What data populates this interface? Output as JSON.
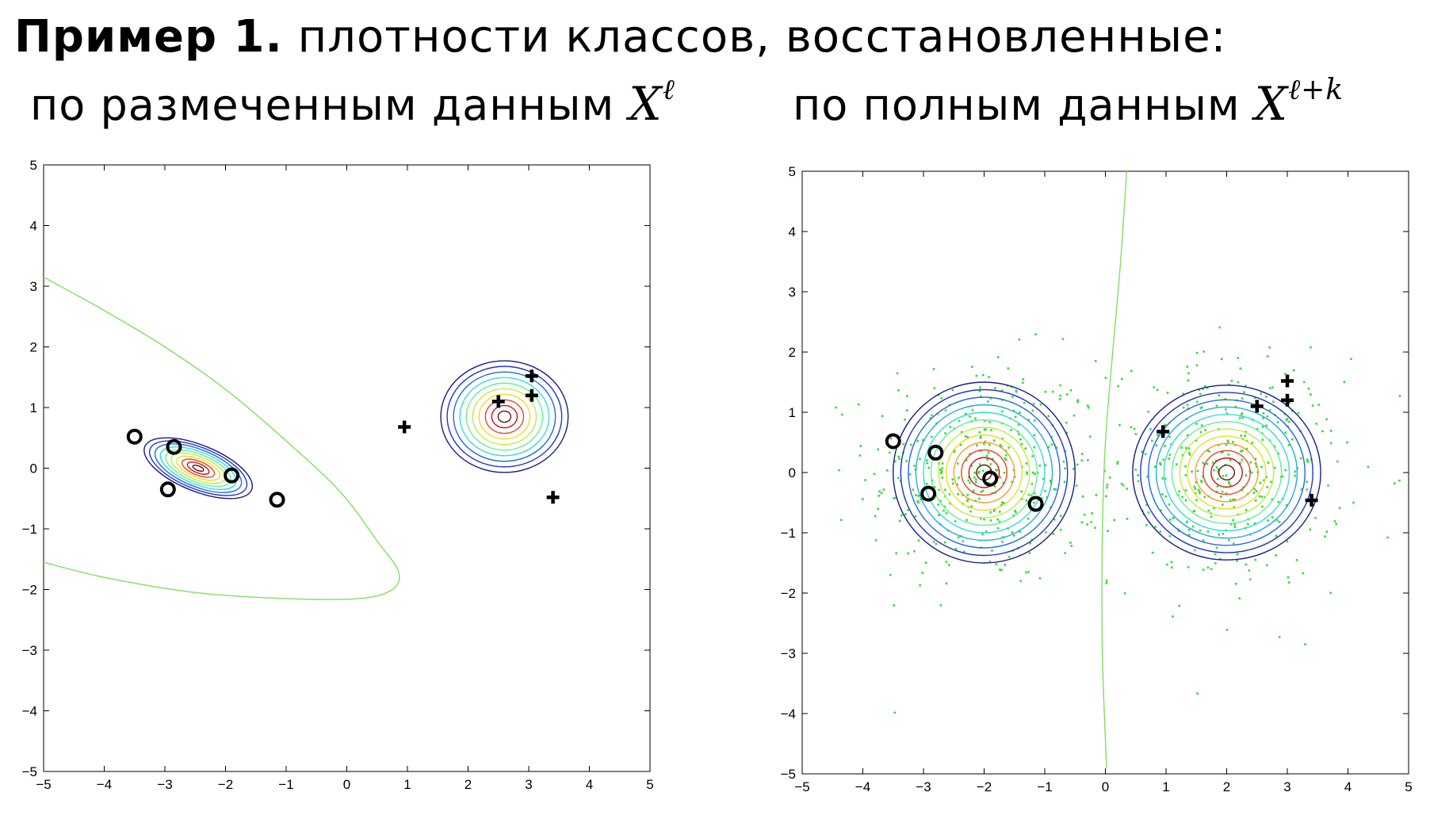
{
  "title": {
    "bold": "Пример 1.",
    "rest": " плотности классов, восстановленные:"
  },
  "subtitles": {
    "left": {
      "text": "по размеченным данным ",
      "symbol": "X",
      "sup": "ℓ"
    },
    "right": {
      "text": "по полным данным ",
      "symbol": "X",
      "sup": "ℓ+k"
    }
  },
  "colors": {
    "boundary": "#80e060",
    "unlabeled_points": "#33dd33",
    "markers": "#000000",
    "contour_levels": [
      "#1a1a8c",
      "#2233cc",
      "#2266ee",
      "#22aaee",
      "#33dddd",
      "#66ee99",
      "#bbee44",
      "#eedd22",
      "#ff9922",
      "#ee4422",
      "#cc1111",
      "#661111"
    ]
  },
  "chart_data": [
    {
      "type": "contour",
      "xlim": [
        -5,
        5
      ],
      "ylim": [
        -5,
        5
      ],
      "xticks": [
        "−5",
        "−4",
        "−3",
        "−2",
        "−1",
        "0",
        "1",
        "2",
        "3",
        "4",
        "5"
      ],
      "yticks": [
        "−5",
        "−4",
        "−3",
        "−2",
        "−1",
        "0",
        "1",
        "2",
        "3",
        "4",
        "5"
      ],
      "class_o_points": [
        [
          -3.5,
          0.52
        ],
        [
          -2.85,
          0.35
        ],
        [
          -2.95,
          -0.35
        ],
        [
          -1.9,
          -0.12
        ],
        [
          -1.15,
          -0.52
        ]
      ],
      "class_plus_points": [
        [
          0.95,
          0.68
        ],
        [
          2.5,
          1.1
        ],
        [
          3.05,
          1.52
        ],
        [
          3.05,
          1.2
        ],
        [
          3.4,
          -0.48
        ]
      ],
      "density_o": {
        "center": [
          -2.45,
          0.0
        ],
        "sx": 0.95,
        "sy": 0.38,
        "angle_deg": -22,
        "levels": 10
      },
      "density_plus": {
        "center": [
          2.6,
          0.85
        ],
        "sx": 1.05,
        "sy": 0.92,
        "angle_deg": 0,
        "levels": 10
      },
      "boundary": [
        [
          -5,
          3.15
        ],
        [
          -4,
          2.6
        ],
        [
          -3,
          2.0
        ],
        [
          -2,
          1.3
        ],
        [
          -1,
          0.45
        ],
        [
          -0.1,
          -0.4
        ],
        [
          0.5,
          -1.2
        ],
        [
          0.85,
          -1.7
        ],
        [
          0.75,
          -2.0
        ],
        [
          0.2,
          -2.15
        ],
        [
          -1,
          -2.15
        ],
        [
          -2.5,
          -2.05
        ],
        [
          -4,
          -1.8
        ],
        [
          -5,
          -1.55
        ]
      ]
    },
    {
      "type": "contour",
      "xlim": [
        -5,
        5
      ],
      "ylim": [
        -5,
        5
      ],
      "xticks": [
        "−5",
        "−4",
        "−3",
        "−2",
        "−1",
        "0",
        "1",
        "2",
        "3",
        "4",
        "5"
      ],
      "yticks": [
        "−5",
        "−4",
        "−3",
        "−2",
        "−1",
        "0",
        "1",
        "2",
        "3",
        "4",
        "5"
      ],
      "class_o_points": [
        [
          -3.5,
          0.52
        ],
        [
          -2.8,
          0.33
        ],
        [
          -2.92,
          -0.35
        ],
        [
          -1.9,
          -0.1
        ],
        [
          -1.15,
          -0.52
        ]
      ],
      "class_plus_points": [
        [
          0.95,
          0.68
        ],
        [
          2.5,
          1.1
        ],
        [
          3.0,
          1.52
        ],
        [
          3.0,
          1.2
        ],
        [
          3.4,
          -0.46
        ]
      ],
      "density_o": {
        "center": [
          -2.0,
          0.0
        ],
        "sx": 1.5,
        "sy": 1.5,
        "angle_deg": 0,
        "levels": 12
      },
      "density_plus": {
        "center": [
          2.0,
          0.0
        ],
        "sx": 1.55,
        "sy": 1.45,
        "angle_deg": 0,
        "levels": 12
      },
      "boundary": [
        [
          0.35,
          5
        ],
        [
          0.25,
          3.5
        ],
        [
          0.12,
          2
        ],
        [
          0.0,
          0.5
        ],
        [
          -0.05,
          -1
        ],
        [
          -0.05,
          -3
        ],
        [
          0.02,
          -4.9
        ]
      ],
      "unlabeled_clusters": [
        {
          "center": [
            -2.0,
            0.0
          ],
          "spread": 0.95,
          "count": 380
        },
        {
          "center": [
            2.0,
            0.0
          ],
          "spread": 0.95,
          "count": 380
        }
      ]
    }
  ]
}
